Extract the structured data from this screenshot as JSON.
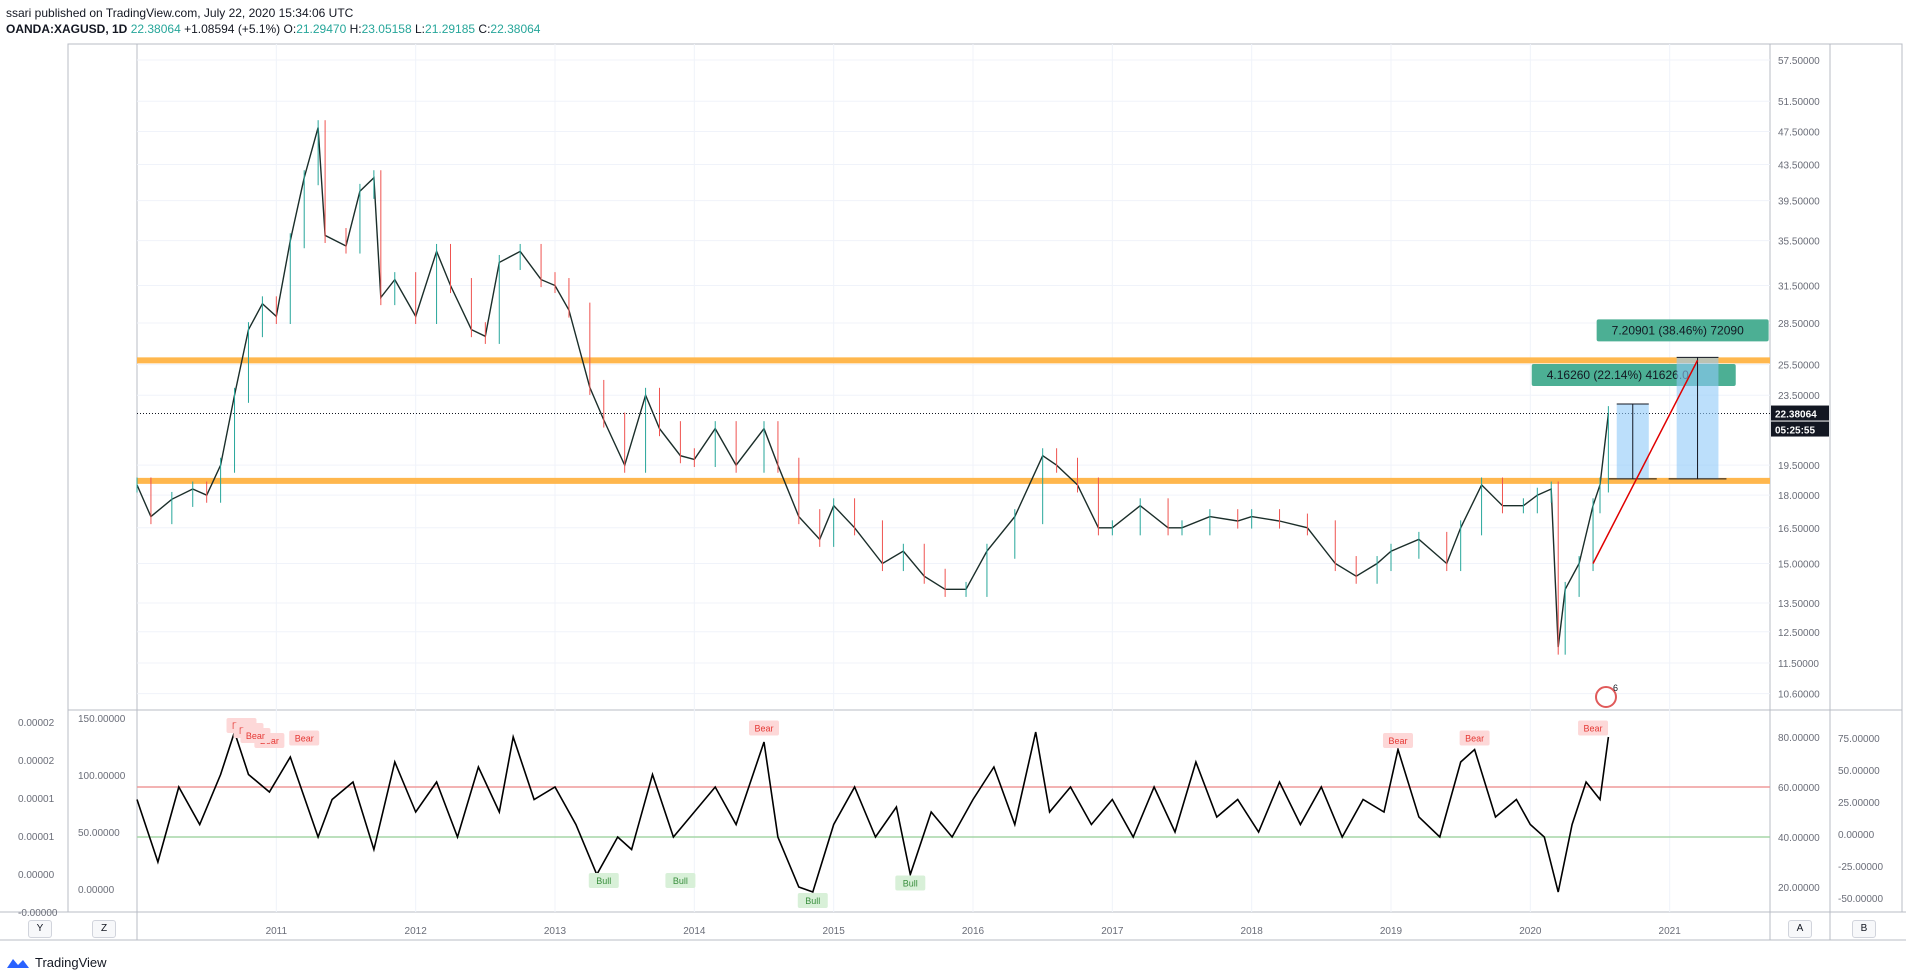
{
  "header": {
    "publisher_line": "ssari published on TradingView.com, July 22, 2020 15:34:06 UTC",
    "symbol": "OANDA:XAGUSD, 1D",
    "last": "22.38064",
    "change": "+1.08594 (+5.1%)",
    "o_label": "O:",
    "o_value": "21.29470",
    "h_label": "H:",
    "h_value": "23.05158",
    "l_label": "L:",
    "l_value": "21.29185",
    "c_label": "C:",
    "c_value": "22.38064"
  },
  "colors": {
    "up": "#26a69a",
    "down": "#ef5350",
    "candle": "#1b2e2a",
    "zone": "#ffb74d",
    "measure_label": "#4caf94",
    "measure_fill": "#90caf9",
    "trend_arrow": "#e00000",
    "oversold": "#a5d6a7",
    "overbought": "#ef9a9a",
    "grid": "#f0f3fa"
  },
  "toolbar": {
    "y_button": "Y",
    "z_button": "Z",
    "a_button": "A",
    "b_button": "B"
  },
  "footer": {
    "brand": "TradingView"
  },
  "chart_data": [
    {
      "type": "candlestick",
      "title": "OANDA:XAGUSD, 1D",
      "x_ticks": [
        "2011",
        "2012",
        "2013",
        "2014",
        "2015",
        "2016",
        "2017",
        "2018",
        "2019",
        "2020",
        "2021"
      ],
      "y_ticks": [
        "57.50000",
        "51.50000",
        "47.50000",
        "43.50000",
        "39.50000",
        "35.50000",
        "31.50000",
        "28.50000",
        "25.50000",
        "23.50000",
        "19.50000",
        "18.00000",
        "16.50000",
        "15.00000",
        "13.50000",
        "12.50000",
        "11.50000",
        "10.60000"
      ],
      "y_scale": "log",
      "current_price_label": "22.38064",
      "countdown_label": "05:25:55",
      "series": [
        {
          "x": [
            2010.0,
            2010.1,
            2010.25,
            2010.4,
            2010.5,
            2010.6,
            2010.7,
            2010.8,
            2010.9,
            2011.0,
            2011.1,
            2011.2,
            2011.3,
            2011.35,
            2011.5,
            2011.6,
            2011.7,
            2011.75,
            2011.85,
            2012.0,
            2012.15,
            2012.25,
            2012.4,
            2012.5,
            2012.6,
            2012.75,
            2012.9,
            2013.0,
            2013.1,
            2013.25,
            2013.35,
            2013.5,
            2013.65,
            2013.75,
            2013.9,
            2014.0,
            2014.15,
            2014.3,
            2014.5,
            2014.6,
            2014.75,
            2014.9,
            2015.0,
            2015.15,
            2015.35,
            2015.5,
            2015.65,
            2015.8,
            2015.95,
            2016.1,
            2016.3,
            2016.5,
            2016.6,
            2016.75,
            2016.9,
            2017.0,
            2017.2,
            2017.4,
            2017.5,
            2017.7,
            2017.9,
            2018.0,
            2018.2,
            2018.4,
            2018.6,
            2018.75,
            2018.9,
            2019.0,
            2019.2,
            2019.4,
            2019.5,
            2019.65,
            2019.8,
            2019.95,
            2020.05,
            2020.15,
            2020.2,
            2020.25,
            2020.35,
            2020.45,
            2020.5,
            2020.56
          ],
          "close": [
            18.5,
            17.0,
            17.8,
            18.3,
            18.0,
            19.5,
            23.5,
            28.0,
            30.0,
            29.0,
            35.5,
            42.0,
            48.0,
            36.0,
            35.0,
            40.5,
            42.0,
            30.5,
            32.0,
            29.0,
            34.5,
            31.5,
            28.0,
            27.5,
            33.5,
            34.5,
            32.0,
            31.5,
            29.5,
            24.0,
            22.0,
            19.5,
            23.5,
            21.5,
            20.0,
            19.8,
            21.5,
            19.5,
            21.5,
            19.5,
            17.0,
            16.0,
            17.5,
            16.5,
            15.0,
            15.5,
            14.5,
            14.0,
            14.0,
            15.5,
            17.0,
            20.0,
            19.5,
            18.5,
            16.5,
            16.5,
            17.5,
            16.5,
            16.5,
            17.0,
            16.8,
            17.0,
            16.8,
            16.5,
            15.0,
            14.5,
            15.0,
            15.5,
            16.0,
            15.0,
            16.5,
            18.5,
            17.5,
            17.5,
            18.0,
            18.3,
            12.0,
            14.0,
            15.0,
            17.5,
            18.5,
            22.38
          ]
        }
      ],
      "zones": [
        {
          "from": 25.7,
          "to": 26.0
        },
        {
          "from": 18.55,
          "to": 18.85
        }
      ],
      "measures": [
        {
          "label": "4.16260 (22.14%) 41626.0",
          "from_price": 18.8,
          "to_price": 22.96,
          "from_date": 2020.62,
          "to_date": 2020.85
        },
        {
          "label": "7.20901 (38.46%) 72090",
          "from_price": 18.8,
          "to_price": 26.0,
          "from_date": 2021.05,
          "to_date": 2021.35
        }
      ],
      "trendline": {
        "from_date": 2020.45,
        "from_price": 15.0,
        "to_date": 2021.2,
        "to_price": 25.8
      },
      "event_marker": "6"
    },
    {
      "type": "line",
      "title": "",
      "x_ticks": [
        "2011",
        "2012",
        "2013",
        "2014",
        "2015",
        "2016",
        "2017",
        "2018",
        "2019",
        "2020",
        "2021"
      ],
      "left_ticks_outer": [
        "0.00002",
        "0.00002",
        "0.00001",
        "0.00001",
        "0.00000",
        "-0.00000"
      ],
      "left_ticks_inner": [
        "150.00000",
        "100.00000",
        "50.00000",
        "0.00000"
      ],
      "right_ticks_inner": [
        "80.00000",
        "60.00000",
        "40.00000",
        "20.00000"
      ],
      "right_ticks_outer": [
        "75.00000",
        "50.00000",
        "25.00000",
        "0.00000",
        "-25.00000",
        "-50.00000"
      ],
      "ylim": [
        10,
        90
      ],
      "levels": [
        60,
        40
      ],
      "divergence_labels": [
        {
          "text": "Bear",
          "date": 2010.75,
          "value": 82
        },
        {
          "text": "Bear",
          "date": 2010.8,
          "value": 80
        },
        {
          "text": "Bear",
          "date": 2010.95,
          "value": 76
        },
        {
          "text": "Bear",
          "date": 2010.85,
          "value": 78
        },
        {
          "text": "Bear",
          "date": 2011.2,
          "value": 77
        },
        {
          "text": "Bear",
          "date": 2014.5,
          "value": 81
        },
        {
          "text": "Bear",
          "date": 2019.05,
          "value": 76
        },
        {
          "text": "Bear",
          "date": 2019.6,
          "value": 77
        },
        {
          "text": "Bear",
          "date": 2020.45,
          "value": 81
        },
        {
          "text": "Bull",
          "date": 2013.35,
          "value": 20
        },
        {
          "text": "Bull",
          "date": 2013.9,
          "value": 20
        },
        {
          "text": "Bull",
          "date": 2014.85,
          "value": 12
        },
        {
          "text": "Bull",
          "date": 2015.55,
          "value": 19
        }
      ],
      "series": [
        {
          "x": [
            2010.0,
            2010.15,
            2010.3,
            2010.45,
            2010.6,
            2010.7,
            2010.8,
            2010.95,
            2011.1,
            2011.3,
            2011.4,
            2011.55,
            2011.7,
            2011.85,
            2012.0,
            2012.15,
            2012.3,
            2012.45,
            2012.6,
            2012.7,
            2012.85,
            2013.0,
            2013.15,
            2013.3,
            2013.45,
            2013.55,
            2013.7,
            2013.85,
            2014.0,
            2014.15,
            2014.3,
            2014.5,
            2014.6,
            2014.75,
            2014.85,
            2015.0,
            2015.15,
            2015.3,
            2015.45,
            2015.55,
            2015.7,
            2015.85,
            2016.0,
            2016.15,
            2016.3,
            2016.45,
            2016.55,
            2016.7,
            2016.85,
            2017.0,
            2017.15,
            2017.3,
            2017.45,
            2017.6,
            2017.75,
            2017.9,
            2018.05,
            2018.2,
            2018.35,
            2018.5,
            2018.65,
            2018.8,
            2018.95,
            2019.05,
            2019.2,
            2019.35,
            2019.5,
            2019.6,
            2019.75,
            2019.9,
            2020.0,
            2020.1,
            2020.2,
            2020.3,
            2020.4,
            2020.5,
            2020.56
          ],
          "values": [
            55,
            30,
            60,
            45,
            65,
            82,
            65,
            58,
            72,
            40,
            55,
            62,
            35,
            70,
            50,
            62,
            40,
            68,
            50,
            80,
            55,
            60,
            45,
            25,
            40,
            35,
            65,
            40,
            50,
            60,
            45,
            78,
            40,
            20,
            18,
            45,
            60,
            40,
            52,
            25,
            50,
            40,
            55,
            68,
            45,
            82,
            50,
            60,
            45,
            55,
            40,
            60,
            42,
            70,
            48,
            55,
            42,
            62,
            45,
            60,
            40,
            55,
            50,
            75,
            48,
            40,
            70,
            75,
            48,
            55,
            45,
            40,
            18,
            45,
            62,
            55,
            80
          ]
        }
      ]
    }
  ]
}
